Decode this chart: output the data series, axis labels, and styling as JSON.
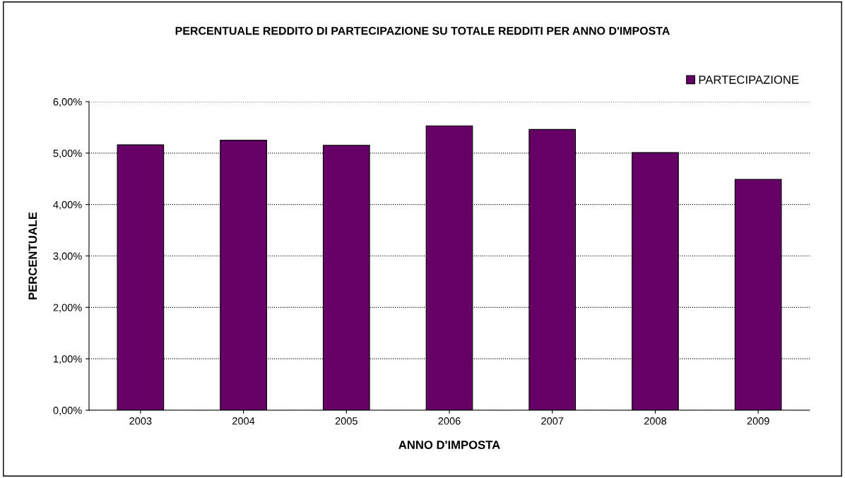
{
  "chart_data": {
    "type": "bar",
    "title": "PERCENTUALE REDDITO DI PARTECIPAZIONE SU TOTALE REDDITI PER ANNO D'IMPOSTA",
    "xlabel": "ANNO D'IMPOSTA",
    "ylabel": "PERCENTUALE",
    "categories": [
      "2003",
      "2004",
      "2005",
      "2006",
      "2007",
      "2008",
      "2009"
    ],
    "series": [
      {
        "name": "PARTECIPAZIONE",
        "color": "#660066",
        "values": [
          5.16,
          5.25,
          5.15,
          5.53,
          5.46,
          5.01,
          4.49
        ]
      }
    ],
    "ylim": [
      0,
      6
    ],
    "yticks": [
      {
        "value": 0,
        "label": "0,00%"
      },
      {
        "value": 1,
        "label": "1,00%"
      },
      {
        "value": 2,
        "label": "2,00%"
      },
      {
        "value": 3,
        "label": "3,00%"
      },
      {
        "value": 4,
        "label": "4,00%"
      },
      {
        "value": 5,
        "label": "5,00%"
      },
      {
        "value": 6,
        "label": "6,00%"
      }
    ],
    "grid": "y",
    "legend": "top right"
  }
}
